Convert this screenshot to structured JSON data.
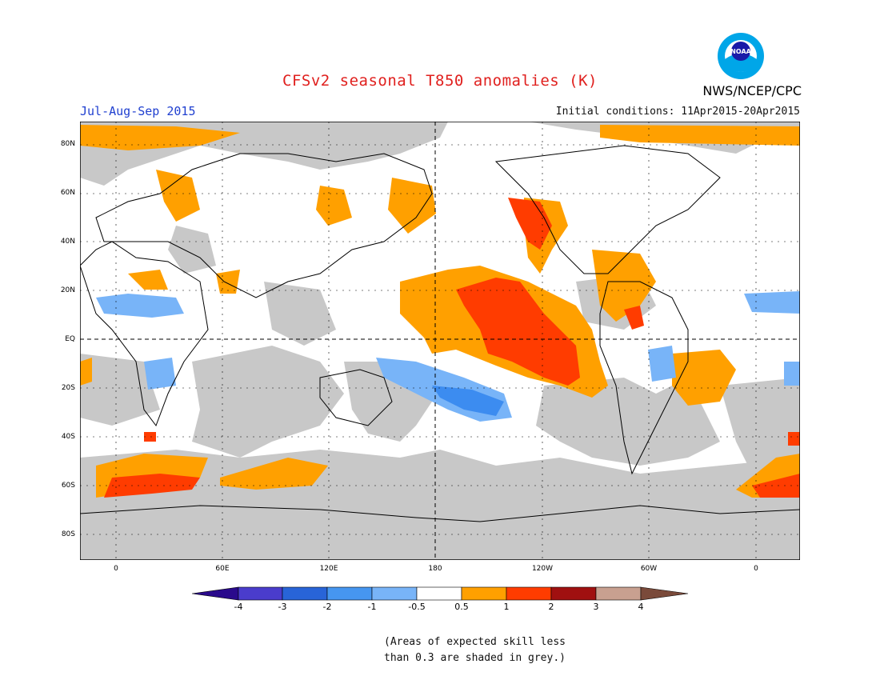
{
  "header": {
    "title": "CFSv2 seasonal T850 anomalies (K)",
    "period": "Jul-Aug-Sep 2015",
    "init": "Initial conditions: 11Apr2015-20Apr2015",
    "agency": "NWS/NCEP/CPC",
    "logo_text": "NOAA"
  },
  "map": {
    "lat_labels": [
      "80N",
      "60N",
      "40N",
      "20N",
      "EQ",
      "20S",
      "40S",
      "60S",
      "80S"
    ],
    "lon_labels": [
      "0",
      "60E",
      "120E",
      "180",
      "120W",
      "60W",
      "0"
    ],
    "colors": {
      "grey_low_skill": "#c8c8c8",
      "ocean_land_neutral": "#ffffff",
      "pos_05_1": "#ffa000",
      "pos_1_2": "#ff3c00",
      "neg_05_1": "#78b4ff",
      "neg_1_2": "#3c8cf0"
    }
  },
  "colorbar": {
    "labels": [
      "-4",
      "-3",
      "-2",
      "-1",
      "-0.5",
      "0.5",
      "1",
      "2",
      "3",
      "4"
    ],
    "colors": [
      "#2a0a8c",
      "#4a3ccc",
      "#2864d8",
      "#4696f0",
      "#78b4f8",
      "#ffffff",
      "#ffa000",
      "#ff3c00",
      "#a01010",
      "#c8a090",
      "#7a4a3a"
    ]
  },
  "footnote": {
    "line1": "(Areas of expected skill less",
    "line2": "than 0.3 are shaded in grey.)"
  }
}
